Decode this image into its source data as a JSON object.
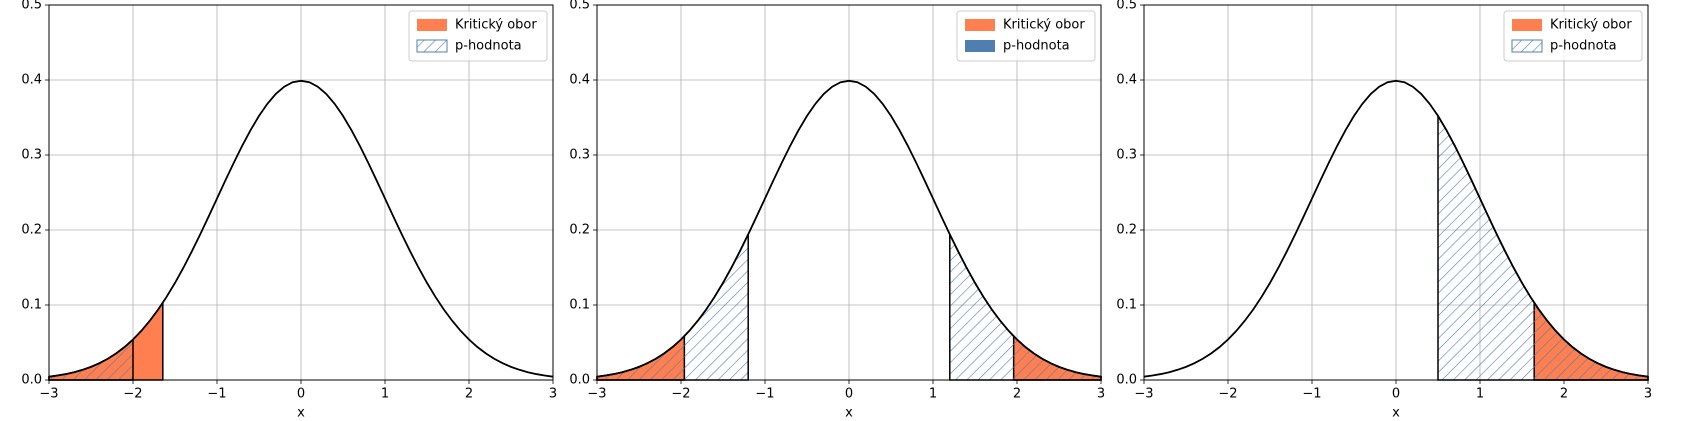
{
  "chart_data": [
    {
      "type": "line",
      "xlabel": "x",
      "x": [
        -3,
        -2.9,
        -2.8,
        -2.7,
        -2.6,
        -2.5,
        -2.4,
        -2.3,
        -2.2,
        -2.1,
        -2,
        -1.9,
        -1.8,
        -1.7,
        -1.6,
        -1.5,
        -1.4,
        -1.3,
        -1.2,
        -1.1,
        -1,
        -0.9,
        -0.8,
        -0.7,
        -0.6,
        -0.5,
        -0.4,
        -0.3,
        -0.2,
        -0.1,
        0,
        0.1,
        0.2,
        0.3,
        0.4,
        0.5,
        0.6,
        0.7,
        0.8,
        0.9,
        1,
        1.1,
        1.2,
        1.3,
        1.4,
        1.5,
        1.6,
        1.7,
        1.8,
        1.9,
        2,
        2.1,
        2.2,
        2.3,
        2.4,
        2.5,
        2.6,
        2.7,
        2.8,
        2.9,
        3
      ],
      "values": [
        0.0044,
        0.006,
        0.0079,
        0.0104,
        0.0136,
        0.0175,
        0.0224,
        0.0283,
        0.0355,
        0.044,
        0.054,
        0.0656,
        0.079,
        0.094,
        0.1109,
        0.1295,
        0.1497,
        0.1714,
        0.1942,
        0.2179,
        0.242,
        0.2661,
        0.2897,
        0.3123,
        0.3332,
        0.3521,
        0.3683,
        0.3814,
        0.391,
        0.397,
        0.3989,
        0.397,
        0.391,
        0.3814,
        0.3683,
        0.3521,
        0.3332,
        0.3123,
        0.2897,
        0.2661,
        0.242,
        0.2179,
        0.1942,
        0.1714,
        0.1497,
        0.1295,
        0.1109,
        0.094,
        0.079,
        0.0656,
        0.054,
        0.044,
        0.0355,
        0.0283,
        0.0224,
        0.0175,
        0.0136,
        0.0104,
        0.0079,
        0.006,
        0.0044
      ],
      "color": "#000000",
      "regions": [
        {
          "name": "Kritický obor",
          "color": "#ff7f50",
          "hatch": false,
          "intervals": [
            [
              -3,
              -1.645
            ]
          ]
        },
        {
          "name": "p-hodnota",
          "color": "#4f7fb0",
          "hatch": true,
          "intervals": [
            [
              -3,
              -2
            ]
          ]
        }
      ],
      "xlim": [
        -3,
        3
      ],
      "ylim": [
        0,
        0.5
      ],
      "xticks": [
        {
          "value": -3,
          "label": "−3"
        },
        {
          "value": -2,
          "label": "−2"
        },
        {
          "value": -1,
          "label": "−1"
        },
        0,
        1,
        2,
        3
      ],
      "yticks": [
        {
          "value": 0,
          "label": "0.0"
        },
        0.1,
        0.2,
        0.3,
        0.4,
        0.5
      ],
      "grid": true,
      "legend": "upper right"
    },
    {
      "type": "line",
      "xlabel": "x",
      "x": [
        -3,
        -2.9,
        -2.8,
        -2.7,
        -2.6,
        -2.5,
        -2.4,
        -2.3,
        -2.2,
        -2.1,
        -2,
        -1.9,
        -1.8,
        -1.7,
        -1.6,
        -1.5,
        -1.4,
        -1.3,
        -1.2,
        -1.1,
        -1,
        -0.9,
        -0.8,
        -0.7,
        -0.6,
        -0.5,
        -0.4,
        -0.3,
        -0.2,
        -0.1,
        0,
        0.1,
        0.2,
        0.3,
        0.4,
        0.5,
        0.6,
        0.7,
        0.8,
        0.9,
        1,
        1.1,
        1.2,
        1.3,
        1.4,
        1.5,
        1.6,
        1.7,
        1.8,
        1.9,
        2,
        2.1,
        2.2,
        2.3,
        2.4,
        2.5,
        2.6,
        2.7,
        2.8,
        2.9,
        3
      ],
      "values": [
        0.0044,
        0.006,
        0.0079,
        0.0104,
        0.0136,
        0.0175,
        0.0224,
        0.0283,
        0.0355,
        0.044,
        0.054,
        0.0656,
        0.079,
        0.094,
        0.1109,
        0.1295,
        0.1497,
        0.1714,
        0.1942,
        0.2179,
        0.242,
        0.2661,
        0.2897,
        0.3123,
        0.3332,
        0.3521,
        0.3683,
        0.3814,
        0.391,
        0.397,
        0.3989,
        0.397,
        0.391,
        0.3814,
        0.3683,
        0.3521,
        0.3332,
        0.3123,
        0.2897,
        0.2661,
        0.242,
        0.2179,
        0.1942,
        0.1714,
        0.1497,
        0.1295,
        0.1109,
        0.094,
        0.079,
        0.0656,
        0.054,
        0.044,
        0.0355,
        0.0283,
        0.0224,
        0.0175,
        0.0136,
        0.0104,
        0.0079,
        0.006,
        0.0044
      ],
      "color": "#000000",
      "regions": [
        {
          "name": "Kritický obor",
          "color": "#ff7f50",
          "hatch": false,
          "intervals": [
            [
              -3,
              -1.96
            ],
            [
              1.96,
              3
            ]
          ]
        },
        {
          "name": "p-hodnota",
          "color": "#4f7fb0",
          "hatch": true,
          "legend_hatch": false,
          "intervals": [
            [
              -3,
              -1.2
            ],
            [
              1.2,
              3
            ]
          ]
        }
      ],
      "xlim": [
        -3,
        3
      ],
      "ylim": [
        0,
        0.5
      ],
      "xticks": [
        {
          "value": -3,
          "label": "−3"
        },
        {
          "value": -2,
          "label": "−2"
        },
        {
          "value": -1,
          "label": "−1"
        },
        0,
        1,
        2,
        3
      ],
      "yticks": [
        {
          "value": 0,
          "label": "0.0"
        },
        0.1,
        0.2,
        0.3,
        0.4,
        0.5
      ],
      "grid": true,
      "legend": "upper right"
    },
    {
      "type": "line",
      "xlabel": "x",
      "x": [
        -3,
        -2.9,
        -2.8,
        -2.7,
        -2.6,
        -2.5,
        -2.4,
        -2.3,
        -2.2,
        -2.1,
        -2,
        -1.9,
        -1.8,
        -1.7,
        -1.6,
        -1.5,
        -1.4,
        -1.3,
        -1.2,
        -1.1,
        -1,
        -0.9,
        -0.8,
        -0.7,
        -0.6,
        -0.5,
        -0.4,
        -0.3,
        -0.2,
        -0.1,
        0,
        0.1,
        0.2,
        0.3,
        0.4,
        0.5,
        0.6,
        0.7,
        0.8,
        0.9,
        1,
        1.1,
        1.2,
        1.3,
        1.4,
        1.5,
        1.6,
        1.7,
        1.8,
        1.9,
        2,
        2.1,
        2.2,
        2.3,
        2.4,
        2.5,
        2.6,
        2.7,
        2.8,
        2.9,
        3
      ],
      "values": [
        0.0044,
        0.006,
        0.0079,
        0.0104,
        0.0136,
        0.0175,
        0.0224,
        0.0283,
        0.0355,
        0.044,
        0.054,
        0.0656,
        0.079,
        0.094,
        0.1109,
        0.1295,
        0.1497,
        0.1714,
        0.1942,
        0.2179,
        0.242,
        0.2661,
        0.2897,
        0.3123,
        0.3332,
        0.3521,
        0.3683,
        0.3814,
        0.391,
        0.397,
        0.3989,
        0.397,
        0.391,
        0.3814,
        0.3683,
        0.3521,
        0.3332,
        0.3123,
        0.2897,
        0.2661,
        0.242,
        0.2179,
        0.1942,
        0.1714,
        0.1497,
        0.1295,
        0.1109,
        0.094,
        0.079,
        0.0656,
        0.054,
        0.044,
        0.0355,
        0.0283,
        0.0224,
        0.0175,
        0.0136,
        0.0104,
        0.0079,
        0.006,
        0.0044
      ],
      "color": "#000000",
      "regions": [
        {
          "name": "Kritický obor",
          "color": "#ff7f50",
          "hatch": false,
          "intervals": [
            [
              1.645,
              3
            ]
          ]
        },
        {
          "name": "p-hodnota",
          "color": "#4f7fb0",
          "hatch": true,
          "intervals": [
            [
              0.5,
              3
            ]
          ]
        }
      ],
      "xlim": [
        -3,
        3
      ],
      "ylim": [
        0,
        0.5
      ],
      "xticks": [
        {
          "value": -3,
          "label": "−3"
        },
        {
          "value": -2,
          "label": "−2"
        },
        {
          "value": -1,
          "label": "−1"
        },
        0,
        1,
        2,
        3
      ],
      "yticks": [
        {
          "value": 0,
          "label": "0.0"
        },
        0.1,
        0.2,
        0.3,
        0.4,
        0.5
      ],
      "grid": true,
      "legend": "upper right"
    }
  ]
}
